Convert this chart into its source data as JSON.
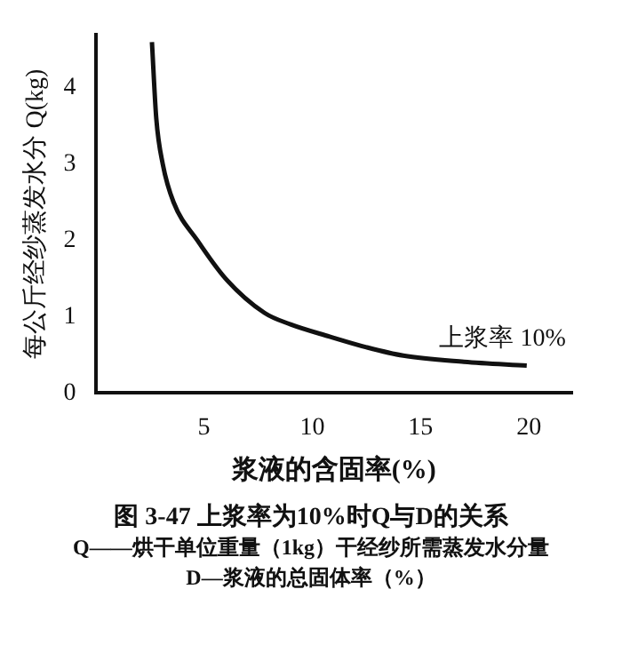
{
  "chart_data": {
    "type": "line",
    "title": "图 3-47 上浆率为10%时Q与D的关系",
    "xlabel": "浆液的含固率(%)",
    "ylabel": "每公斤经纱蒸发水分 Q(kg)",
    "x": [
      2.6,
      2.8,
      3.1,
      3.6,
      4.7,
      6,
      7.8,
      9,
      10.8,
      12.5,
      14.2,
      17,
      19.9
    ],
    "series": [
      {
        "name": "上浆率 10%",
        "color": "#111111",
        "values": [
          4.6,
          3.6,
          3.0,
          2.5,
          2.0,
          1.5,
          1.05,
          0.9,
          0.74,
          0.6,
          0.49,
          0.41,
          0.36
        ]
      }
    ],
    "xlim": [
      0,
      22
    ],
    "xticks": [
      5,
      10,
      15,
      20
    ],
    "ylim": [
      0,
      4.7
    ],
    "yticks": [
      0,
      1,
      2,
      3,
      4
    ],
    "grid": false,
    "legend": false,
    "annotations": [
      "Q——烘干单位重量（1kg）干经纱所需蒸发水分量",
      "D—浆液的总固体率（%）"
    ]
  }
}
